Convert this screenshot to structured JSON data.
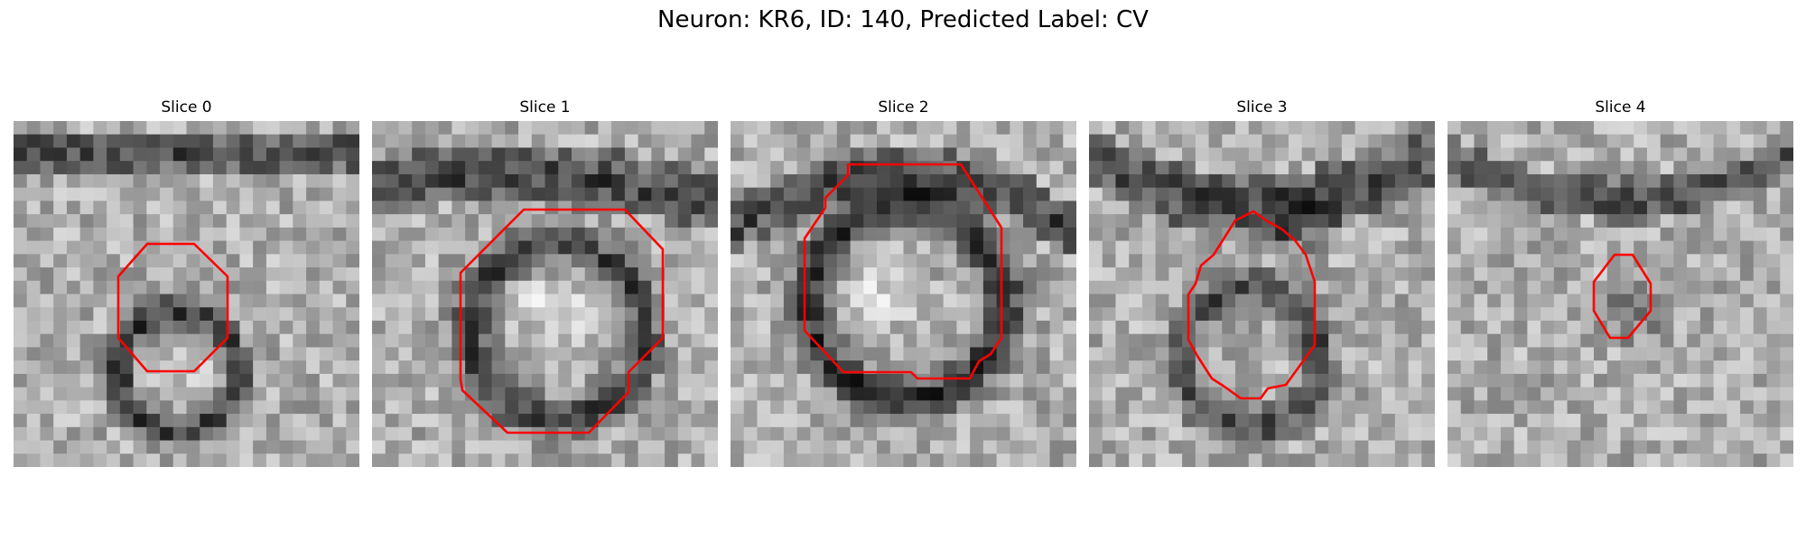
{
  "figure": {
    "title": "Neuron: KR6, ID: 140, Predicted Label: CV"
  },
  "panels": [
    {
      "title": "Slice 0"
    },
    {
      "title": "Slice 1"
    },
    {
      "title": "Slice 2"
    },
    {
      "title": "Slice 3"
    },
    {
      "title": "Slice 4"
    }
  ],
  "colors": {
    "contour": "#ff0000",
    "background": "#ffffff"
  }
}
